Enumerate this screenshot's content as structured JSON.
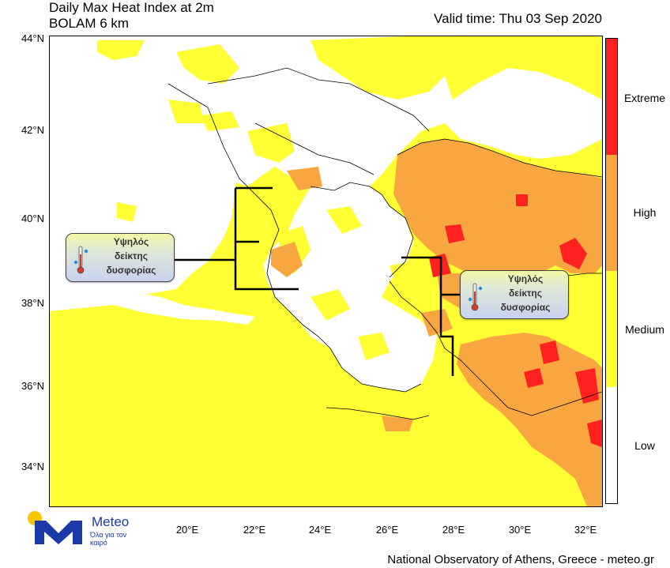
{
  "header": {
    "title_line1": "Daily Max Heat Index at 2m",
    "title_line2": "BOLAM 6 km",
    "valid_time": "Valid time: Thu 03 Sep 2020"
  },
  "axes": {
    "lat_ticks": [
      "44°N",
      "42°N",
      "40°N",
      "38°N",
      "36°N",
      "34°N"
    ],
    "lon_ticks": [
      "20°E",
      "22°E",
      "24°E",
      "26°E",
      "28°E",
      "30°E",
      "32°E"
    ]
  },
  "legend": {
    "levels": [
      {
        "label": "Extreme",
        "color": "#ff2020"
      },
      {
        "label": "High",
        "color": "#f7a640"
      },
      {
        "label": "Medium",
        "color": "#ffff33"
      },
      {
        "label": "Low",
        "color": "#ffffff"
      }
    ]
  },
  "callouts": {
    "west": {
      "line1": "Υψηλός",
      "line2": "δείκτης",
      "line3": "δυσφορίας"
    },
    "east": {
      "line1": "Υψηλός",
      "line2": "δείκτης",
      "line3": "δυσφορίας"
    }
  },
  "logo": {
    "name": "Meteo",
    "tagline": "Όλα για τον καιρό"
  },
  "footer": {
    "credit": "National Observatory of Athens, Greece - meteo.gr"
  },
  "colors": {
    "medium": "#ffff33",
    "high": "#f7a640",
    "extreme": "#ff2020",
    "low": "#ffffff",
    "logo_blue": "#1a3aa8",
    "logo_yellow": "#f7c600"
  }
}
